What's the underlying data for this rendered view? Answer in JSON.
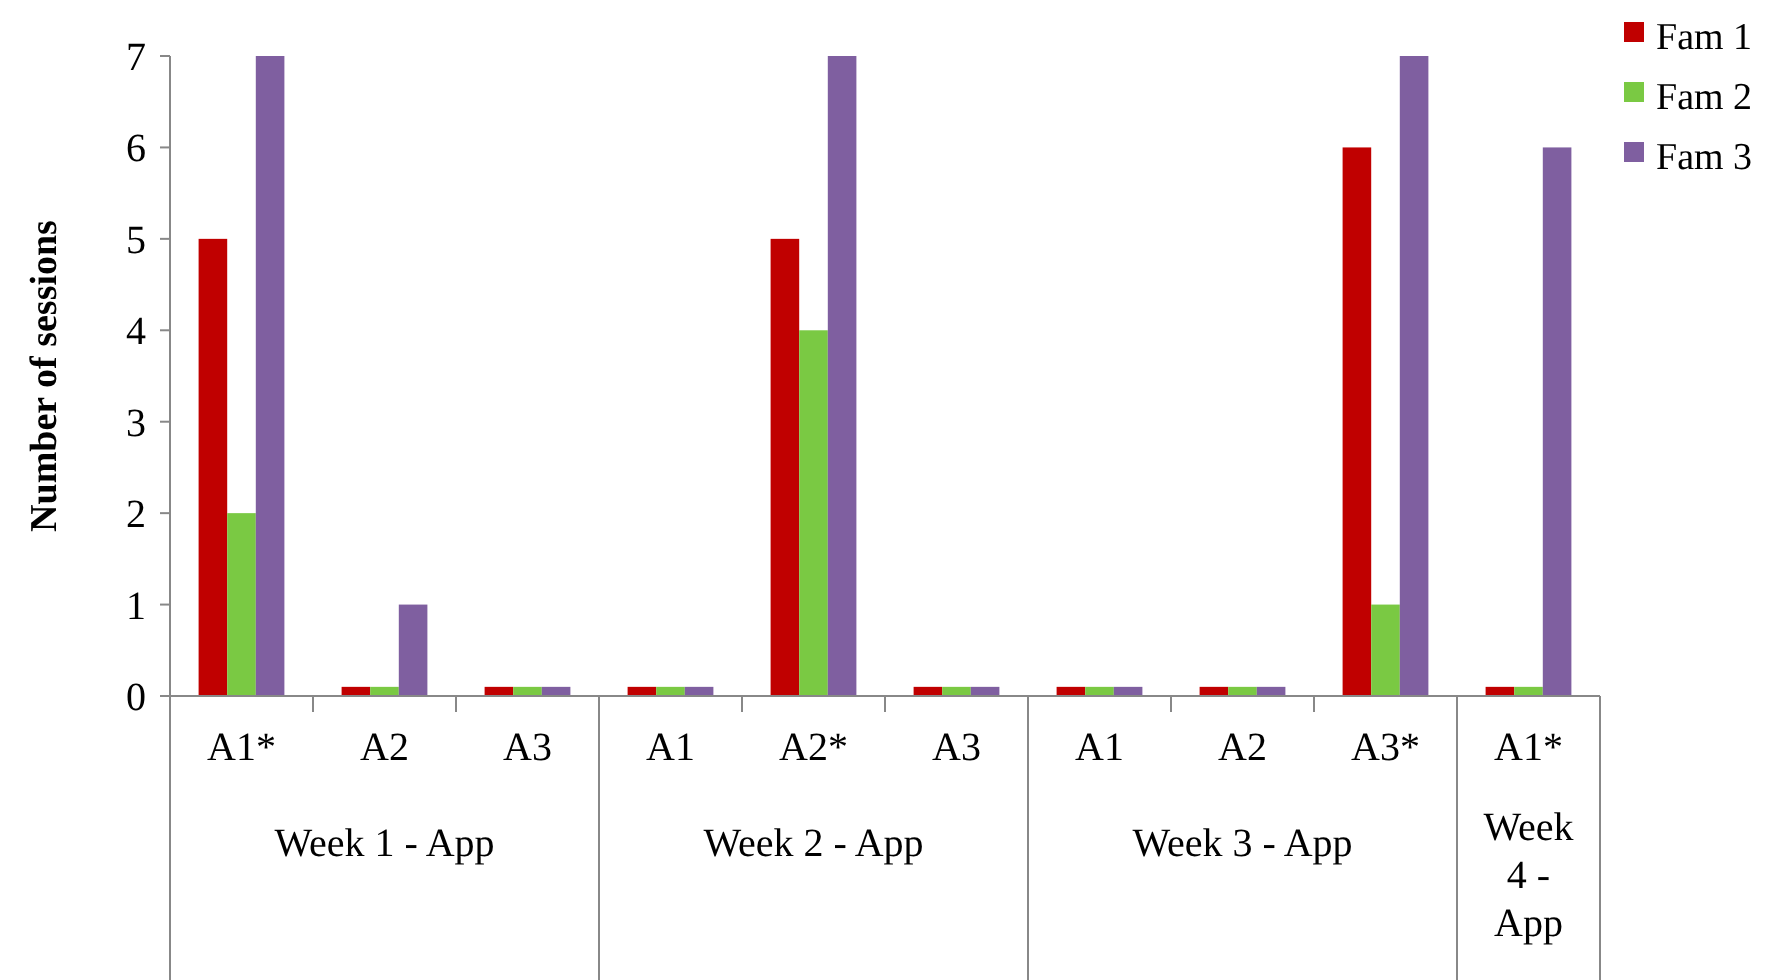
{
  "chart_data": {
    "type": "bar",
    "ylabel": "Number of sessions",
    "categories": [
      "A1*",
      "A2",
      "A3",
      "A1",
      "A2*",
      "A3",
      "A1",
      "A2",
      "A3*",
      "A1*"
    ],
    "series": [
      {
        "name": "Fam 1",
        "color": "#c00000",
        "values": [
          5,
          0.1,
          0.1,
          0.1,
          5,
          0.1,
          0.1,
          0.1,
          6,
          0.1
        ]
      },
      {
        "name": "Fam 2",
        "color": "#7ac943",
        "values": [
          2,
          0.1,
          0.1,
          0.1,
          4,
          0.1,
          0.1,
          0.1,
          1,
          0.1
        ]
      },
      {
        "name": "Fam 3",
        "color": "#7f5fa0",
        "values": [
          7,
          1,
          0.1,
          0.1,
          7,
          0.1,
          0.1,
          0.1,
          7,
          6
        ]
      }
    ],
    "ylim": [
      0,
      7
    ],
    "yticks": [
      0,
      1,
      2,
      3,
      4,
      5,
      6,
      7
    ],
    "grid": false,
    "legend": "top right",
    "annotations": [
      "Week 1 - App",
      "Week 2 - App",
      "Week 3 - App",
      "Week 4 - App"
    ]
  }
}
